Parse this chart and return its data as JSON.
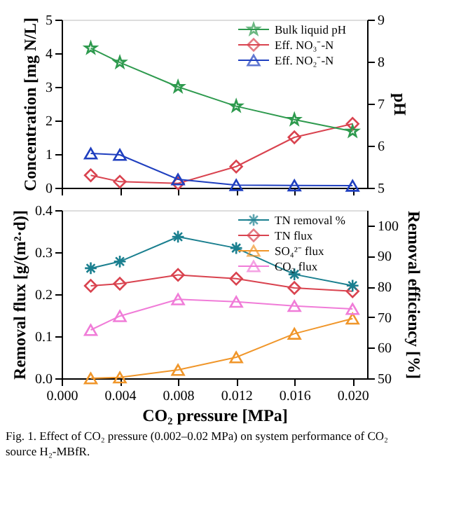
{
  "chart_data": [
    {
      "type": "line",
      "ylabel": "Concentration [mg N/L]",
      "y2label": "pH",
      "x": [
        0.002,
        0.004,
        0.008,
        0.012,
        0.016,
        0.02
      ],
      "xlim": [
        0,
        0.021
      ],
      "xticks": [
        {
          "value": 0,
          "label": null
        },
        {
          "value": 0.004,
          "label": null
        },
        {
          "value": 0.008,
          "label": null
        },
        {
          "value": 0.012,
          "label": null
        },
        {
          "value": 0.016,
          "label": null
        },
        {
          "value": 0.02,
          "label": null
        }
      ],
      "ylim": [
        0,
        5
      ],
      "yticks": [
        0,
        1,
        2,
        3,
        4,
        5
      ],
      "y2lim": [
        5,
        9
      ],
      "y2ticks": [
        5,
        6,
        7,
        8,
        9
      ],
      "tick_labels": "y",
      "grid": false,
      "legend": "top right",
      "series": [
        {
          "name": "Bulk liquid pH",
          "color": "#2e9a4e",
          "marker": "star",
          "axis": "y2",
          "values": [
            8.32,
            7.98,
            7.4,
            6.94,
            6.62,
            6.34
          ]
        },
        {
          "name": "Eff. NO₃⁻-N",
          "color": "#d9434f",
          "marker": "diamond",
          "values": [
            0.37,
            0.18,
            0.13,
            0.63,
            1.5,
            1.9
          ]
        },
        {
          "name": "Eff. NO₂⁻-N",
          "color": "#1f3fbf",
          "marker": "triangle",
          "values": [
            1.02,
            0.98,
            0.25,
            0.08,
            0.07,
            0.06
          ]
        }
      ]
    },
    {
      "type": "line",
      "xlabel": "CO₂ pressure [MPa]",
      "ylabel": "Removal flux [g/(m²·d)]",
      "y2label": "Removal efficiency [%]",
      "x": [
        0.002,
        0.004,
        0.008,
        0.012,
        0.016,
        0.02
      ],
      "xlim": [
        0,
        0.021
      ],
      "xticks": [
        {
          "value": 0,
          "label": "0.000"
        },
        {
          "value": 0.004,
          "label": "0.004"
        },
        {
          "value": 0.008,
          "label": "0.008"
        },
        {
          "value": 0.012,
          "label": "0.012"
        },
        {
          "value": 0.016,
          "label": "0.016"
        },
        {
          "value": 0.02,
          "label": "0.020"
        }
      ],
      "ylim": [
        0,
        0.4
      ],
      "yticks": [
        {
          "value": 0,
          "label": "0.0"
        },
        0.1,
        0.2,
        0.3,
        0.4
      ],
      "y2lim": [
        50,
        105
      ],
      "y2ticks": [
        50,
        60,
        70,
        80,
        90,
        100
      ],
      "grid": false,
      "legend": "top right",
      "annotations": [
        "Fig. 1. Effect of CO₂ pressure (0.002–0.02 MPa) on system performance of CO₂ source H₂-MBfR."
      ],
      "series": [
        {
          "name": "TN removal %",
          "color": "#1a7f8f",
          "marker": "cross",
          "axis": "y2",
          "values": [
            86.0,
            88.2,
            96.3,
            92.6,
            84.0,
            80.3
          ]
        },
        {
          "name": "TN flux",
          "color": "#d9434f",
          "marker": "diamond",
          "values": [
            0.22,
            0.225,
            0.246,
            0.237,
            0.215,
            0.207
          ]
        },
        {
          "name": "SO₄²⁻ flux",
          "color": "#f0962a",
          "marker": "triangle",
          "values": [
            0.0,
            0.002,
            0.02,
            0.05,
            0.106,
            0.142
          ]
        },
        {
          "name": "CO₂ flux",
          "color": "#f07cd8",
          "marker": "triangle",
          "values": [
            0.115,
            0.148,
            0.188,
            0.182,
            0.172,
            0.165
          ]
        }
      ]
    }
  ]
}
